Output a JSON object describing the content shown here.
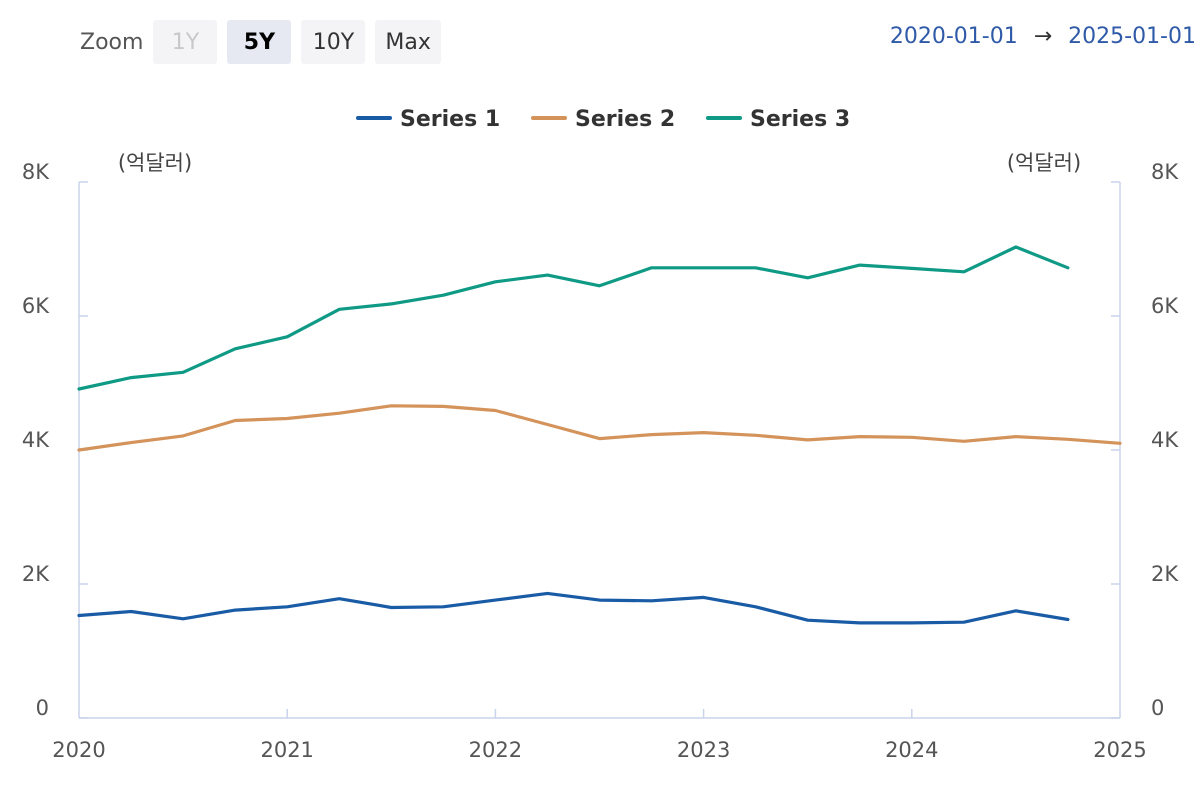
{
  "toolbar": {
    "zoom_label": "Zoom",
    "buttons": [
      "1Y",
      "5Y",
      "10Y",
      "Max"
    ],
    "active": "5Y",
    "disabled": [
      "1Y"
    ]
  },
  "range": {
    "from": "2020-01-01",
    "arrow": "→",
    "to": "2025-01-01"
  },
  "colors": {
    "series1": "#1a5ba6",
    "series2": "#d4935a",
    "series3": "#0f9a85",
    "axis": "#c9d3ea"
  },
  "chart_data": {
    "type": "line",
    "title": "",
    "xlabel": "",
    "unit_left": "(억달러)",
    "unit_right": "(억달러)",
    "ylim": [
      0,
      8000
    ],
    "xlim": [
      2020,
      2025
    ],
    "y_ticks": [
      "0",
      "2K",
      "4K",
      "6K",
      "8K"
    ],
    "x_ticks": [
      "2020",
      "2021",
      "2022",
      "2023",
      "2024",
      "2025"
    ],
    "legend_position": "top-center",
    "grid": false,
    "series": [
      {
        "name": "Series 1",
        "color": "#1a5ba6",
        "x": [
          2020.0,
          2020.25,
          2020.5,
          2020.75,
          2021.0,
          2021.25,
          2021.5,
          2021.75,
          2022.0,
          2022.25,
          2022.5,
          2022.75,
          2023.0,
          2023.25,
          2023.5,
          2023.75,
          2024.0,
          2024.25,
          2024.5,
          2024.75
        ],
        "values": [
          1530,
          1590,
          1480,
          1610,
          1660,
          1780,
          1650,
          1660,
          1760,
          1860,
          1760,
          1750,
          1800,
          1660,
          1460,
          1420,
          1420,
          1430,
          1600,
          1470
        ]
      },
      {
        "name": "Series 2",
        "color": "#d4935a",
        "x": [
          2020.0,
          2020.25,
          2020.5,
          2020.75,
          2021.0,
          2021.25,
          2021.5,
          2021.75,
          2022.0,
          2022.25,
          2022.5,
          2022.75,
          2023.0,
          2023.25,
          2023.5,
          2023.75,
          2024.0,
          2024.25,
          2024.5,
          2024.75,
          2025.0
        ],
        "values": [
          4000,
          4110,
          4210,
          4440,
          4470,
          4550,
          4660,
          4650,
          4590,
          4380,
          4170,
          4230,
          4260,
          4220,
          4150,
          4200,
          4190,
          4130,
          4200,
          4160,
          4100
        ]
      },
      {
        "name": "Series 3",
        "color": "#0f9a85",
        "x": [
          2020.0,
          2020.25,
          2020.5,
          2020.75,
          2021.0,
          2021.25,
          2021.5,
          2021.75,
          2022.0,
          2022.25,
          2022.5,
          2022.75,
          2023.0,
          2023.25,
          2023.5,
          2023.75,
          2024.0,
          2024.25,
          2024.5,
          2024.75
        ],
        "values": [
          4910,
          5080,
          5160,
          5510,
          5690,
          6100,
          6180,
          6310,
          6510,
          6610,
          6450,
          6720,
          6720,
          6720,
          6570,
          6760,
          6710,
          6660,
          7030,
          6720
        ]
      }
    ]
  }
}
